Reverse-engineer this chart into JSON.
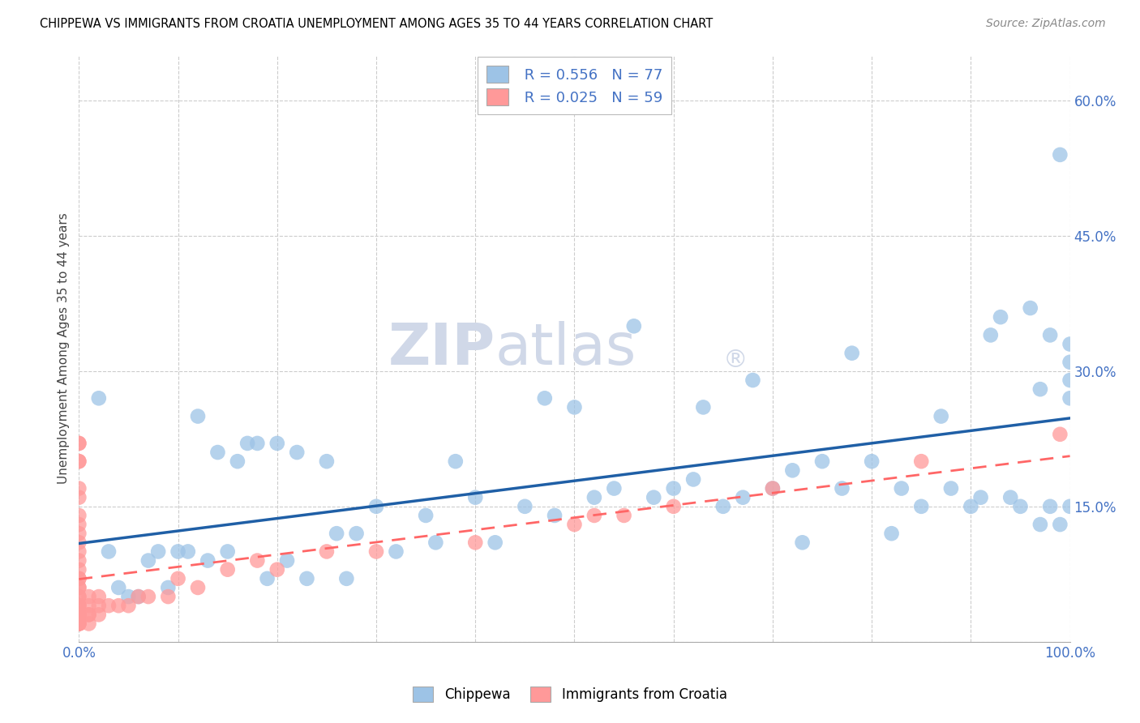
{
  "title": "CHIPPEWA VS IMMIGRANTS FROM CROATIA UNEMPLOYMENT AMONG AGES 35 TO 44 YEARS CORRELATION CHART",
  "source": "Source: ZipAtlas.com",
  "ylabel": "Unemployment Among Ages 35 to 44 years",
  "xlim": [
    0,
    1.0
  ],
  "ylim": [
    0,
    0.65
  ],
  "xticks": [
    0.0,
    0.1,
    0.2,
    0.3,
    0.4,
    0.5,
    0.6,
    0.7,
    0.8,
    0.9,
    1.0
  ],
  "yticks": [
    0.0,
    0.15,
    0.3,
    0.45,
    0.6
  ],
  "yticklabels": [
    "",
    "15.0%",
    "30.0%",
    "45.0%",
    "60.0%"
  ],
  "chippewa_R": 0.556,
  "chippewa_N": 77,
  "croatia_R": 0.025,
  "croatia_N": 59,
  "chippewa_color": "#9DC3E6",
  "croatia_color": "#FF9999",
  "chippewa_line_color": "#1F5FA6",
  "croatia_line_color": "#FF6666",
  "legend_label_chippewa": "Chippewa",
  "legend_label_croatia": "Immigrants from Croatia",
  "bg_color": "#FFFFFF",
  "grid_color": "#CCCCCC",
  "watermark_text": "ZIPatlas",
  "watermark_reg": "®",
  "chippewa_x": [
    0.02,
    0.03,
    0.04,
    0.05,
    0.06,
    0.07,
    0.08,
    0.09,
    0.1,
    0.11,
    0.12,
    0.13,
    0.14,
    0.15,
    0.16,
    0.17,
    0.18,
    0.19,
    0.2,
    0.21,
    0.22,
    0.23,
    0.25,
    0.26,
    0.27,
    0.28,
    0.3,
    0.32,
    0.35,
    0.36,
    0.38,
    0.4,
    0.42,
    0.45,
    0.47,
    0.48,
    0.5,
    0.52,
    0.54,
    0.56,
    0.58,
    0.6,
    0.62,
    0.63,
    0.65,
    0.67,
    0.68,
    0.7,
    0.72,
    0.73,
    0.75,
    0.77,
    0.78,
    0.8,
    0.82,
    0.83,
    0.85,
    0.87,
    0.88,
    0.9,
    0.91,
    0.92,
    0.93,
    0.94,
    0.95,
    0.96,
    0.97,
    0.97,
    0.98,
    0.98,
    0.99,
    0.99,
    1.0,
    1.0,
    1.0,
    1.0,
    1.0
  ],
  "chippewa_y": [
    0.27,
    0.1,
    0.06,
    0.05,
    0.05,
    0.09,
    0.1,
    0.06,
    0.1,
    0.1,
    0.25,
    0.09,
    0.21,
    0.1,
    0.2,
    0.22,
    0.22,
    0.07,
    0.22,
    0.09,
    0.21,
    0.07,
    0.2,
    0.12,
    0.07,
    0.12,
    0.15,
    0.1,
    0.14,
    0.11,
    0.2,
    0.16,
    0.11,
    0.15,
    0.27,
    0.14,
    0.26,
    0.16,
    0.17,
    0.35,
    0.16,
    0.17,
    0.18,
    0.26,
    0.15,
    0.16,
    0.29,
    0.17,
    0.19,
    0.11,
    0.2,
    0.17,
    0.32,
    0.2,
    0.12,
    0.17,
    0.15,
    0.25,
    0.17,
    0.15,
    0.16,
    0.34,
    0.36,
    0.16,
    0.15,
    0.37,
    0.28,
    0.13,
    0.34,
    0.15,
    0.13,
    0.54,
    0.27,
    0.31,
    0.33,
    0.15,
    0.29
  ],
  "croatia_x": [
    0.0,
    0.0,
    0.0,
    0.0,
    0.0,
    0.0,
    0.0,
    0.0,
    0.0,
    0.0,
    0.0,
    0.0,
    0.0,
    0.0,
    0.0,
    0.0,
    0.0,
    0.0,
    0.0,
    0.0,
    0.0,
    0.0,
    0.0,
    0.0,
    0.0,
    0.0,
    0.0,
    0.0,
    0.0,
    0.0,
    0.01,
    0.01,
    0.01,
    0.01,
    0.01,
    0.02,
    0.02,
    0.02,
    0.03,
    0.04,
    0.05,
    0.06,
    0.07,
    0.09,
    0.1,
    0.12,
    0.15,
    0.18,
    0.2,
    0.25,
    0.3,
    0.4,
    0.5,
    0.52,
    0.55,
    0.6,
    0.7,
    0.85,
    0.99
  ],
  "croatia_y": [
    0.22,
    0.22,
    0.2,
    0.2,
    0.17,
    0.16,
    0.14,
    0.13,
    0.12,
    0.11,
    0.1,
    0.09,
    0.08,
    0.07,
    0.07,
    0.06,
    0.06,
    0.05,
    0.05,
    0.04,
    0.04,
    0.04,
    0.03,
    0.03,
    0.03,
    0.03,
    0.02,
    0.02,
    0.02,
    0.02,
    0.05,
    0.04,
    0.03,
    0.03,
    0.02,
    0.05,
    0.04,
    0.03,
    0.04,
    0.04,
    0.04,
    0.05,
    0.05,
    0.05,
    0.07,
    0.06,
    0.08,
    0.09,
    0.08,
    0.1,
    0.1,
    0.11,
    0.13,
    0.14,
    0.14,
    0.15,
    0.17,
    0.2,
    0.23
  ]
}
